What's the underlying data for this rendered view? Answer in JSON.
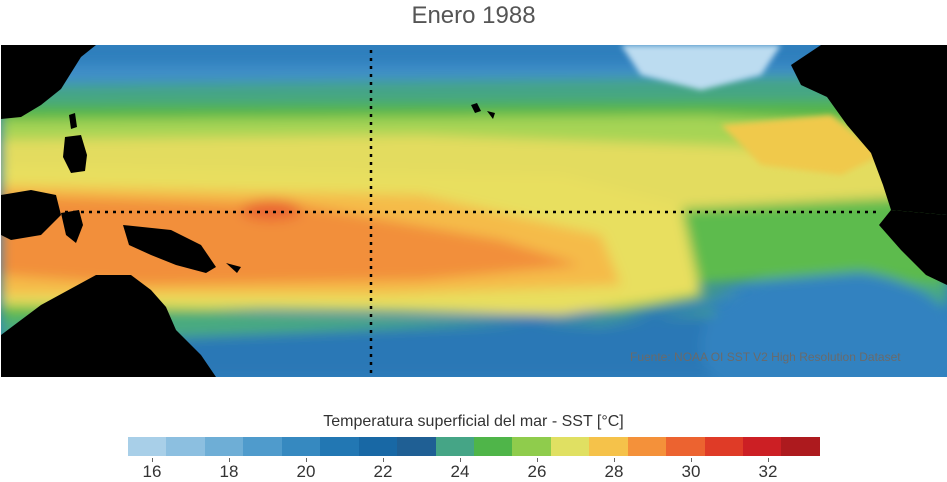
{
  "map": {
    "title": "Enero 1988",
    "source": "Fuente: NOAA OI SST V2 High Resolution Dataset",
    "colors": {
      "land": "#000000",
      "cold_blue": "#1f6fb0",
      "mid_blue": "#4a9ad0",
      "teal": "#46a888",
      "green": "#56b84a",
      "yellow_green": "#a6d454",
      "yellow": "#e8e060",
      "orange_light": "#f5b54a",
      "orange": "#f28a3c"
    }
  },
  "colorbar": {
    "title": "Temperatura superficial del mar - SST  [°C]",
    "ticks": [
      "16",
      "18",
      "20",
      "22",
      "24",
      "26",
      "28",
      "30",
      "32"
    ],
    "colors": [
      "#a8cfe8",
      "#8cbfe0",
      "#6eaed6",
      "#4f9bcc",
      "#3689c0",
      "#2277b3",
      "#1868a5",
      "#1f5f94",
      "#45a586",
      "#4fb549",
      "#8fcc4c",
      "#e0e062",
      "#f5c24a",
      "#f4913a",
      "#ec6330",
      "#df3b27",
      "#cc1f24",
      "#ad1a1e"
    ]
  }
}
